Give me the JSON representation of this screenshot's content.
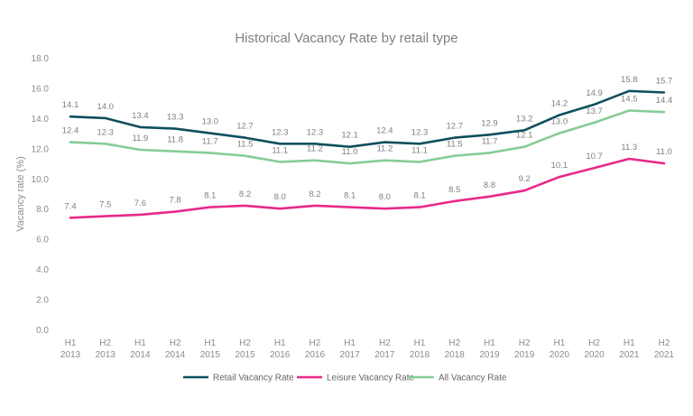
{
  "chart_data": {
    "type": "line",
    "title": "Historical Vacancy Rate by retail type",
    "ylabel": "Vacancy rate (%)",
    "xlabel": "",
    "ylim": [
      0,
      18
    ],
    "yticks": [
      "0.0",
      "2.0",
      "4.0",
      "6.0",
      "8.0",
      "10.0",
      "12.0",
      "14.0",
      "16.0",
      "18.0"
    ],
    "grid": false,
    "legend_position": "bottom",
    "categories": [
      {
        "half": "H1",
        "year": "2013"
      },
      {
        "half": "H2",
        "year": "2013"
      },
      {
        "half": "H1",
        "year": "2014"
      },
      {
        "half": "H2",
        "year": "2014"
      },
      {
        "half": "H1",
        "year": "2015"
      },
      {
        "half": "H2",
        "year": "2015"
      },
      {
        "half": "H1",
        "year": "2016"
      },
      {
        "half": "H2",
        "year": "2016"
      },
      {
        "half": "H1",
        "year": "2017"
      },
      {
        "half": "H2",
        "year": "2017"
      },
      {
        "half": "H1",
        "year": "2018"
      },
      {
        "half": "H2",
        "year": "2018"
      },
      {
        "half": "H1",
        "year": "2019"
      },
      {
        "half": "H2",
        "year": "2019"
      },
      {
        "half": "H1",
        "year": "2020"
      },
      {
        "half": "H2",
        "year": "2020"
      },
      {
        "half": "H1",
        "year": "2021"
      },
      {
        "half": "H2",
        "year": "2021"
      }
    ],
    "series": [
      {
        "name": "Retail Vacancy Rate",
        "color": "#0e4f5e",
        "values": [
          14.1,
          14.0,
          13.4,
          13.3,
          13.0,
          12.7,
          12.3,
          12.3,
          12.1,
          12.4,
          12.3,
          12.7,
          12.9,
          13.2,
          14.2,
          14.9,
          15.8,
          15.7
        ]
      },
      {
        "name": "Leisure Vacancy Rate",
        "color": "#e8298a",
        "values": [
          7.4,
          7.5,
          7.6,
          7.8,
          8.1,
          8.2,
          8.0,
          8.2,
          8.1,
          8.0,
          8.1,
          8.5,
          8.8,
          9.2,
          10.1,
          10.7,
          11.3,
          11.0
        ]
      },
      {
        "name": "All Vacancy Rate",
        "color": "#86cc98",
        "values": [
          12.4,
          12.3,
          11.9,
          11.8,
          11.7,
          11.5,
          11.1,
          11.2,
          11.0,
          11.2,
          11.1,
          11.5,
          11.7,
          12.1,
          13.0,
          13.7,
          14.5,
          14.4
        ]
      }
    ]
  }
}
